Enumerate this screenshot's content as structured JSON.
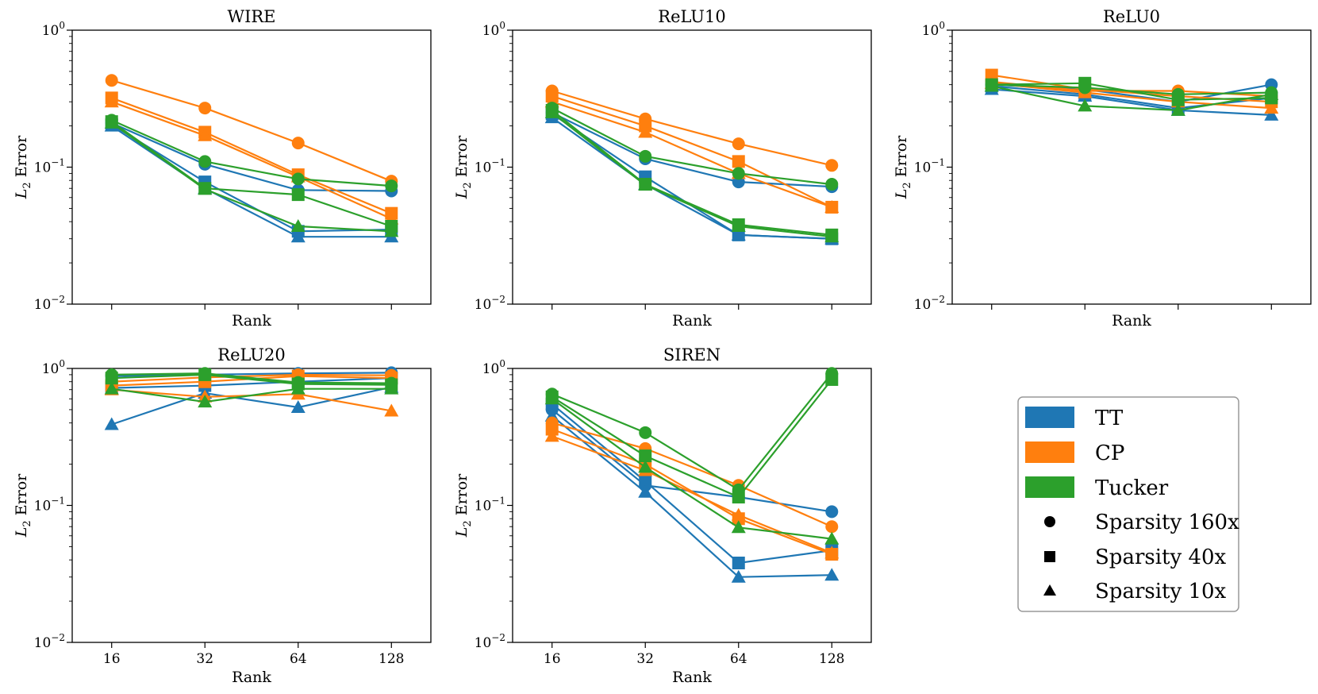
{
  "legend": {
    "entries": [
      {
        "label": "TT",
        "kind": "method",
        "color": "#1f77b4"
      },
      {
        "label": "CP",
        "kind": "method",
        "color": "#ff7f0e"
      },
      {
        "label": "Tucker",
        "kind": "method",
        "color": "#2ca02c"
      },
      {
        "label": "Sparsity 160x",
        "kind": "marker",
        "marker": "circle"
      },
      {
        "label": "Sparsity 40x",
        "kind": "marker",
        "marker": "square"
      },
      {
        "label": "Sparsity 10x",
        "kind": "marker",
        "marker": "triangle"
      }
    ]
  },
  "chart_data": [
    {
      "type": "line",
      "title": "WIRE",
      "xlabel": "Rank",
      "ylabel": "L2 Error",
      "yscale": "log",
      "ylim": [
        0.01,
        1
      ],
      "x": [
        16,
        32,
        64,
        128
      ],
      "x_tick_labels_visible": false,
      "series": [
        {
          "name": "TT - Sparsity 160x",
          "method": "TT",
          "color": "#1f77b4",
          "marker": "circle",
          "values": [
            0.21,
            0.105,
            0.068,
            0.067
          ]
        },
        {
          "name": "TT - Sparsity 40x",
          "method": "TT",
          "color": "#1f77b4",
          "marker": "square",
          "values": [
            0.205,
            0.078,
            0.034,
            0.035
          ]
        },
        {
          "name": "TT - Sparsity 10x",
          "method": "TT",
          "color": "#1f77b4",
          "marker": "triangle",
          "values": [
            0.2,
            0.07,
            0.031,
            0.031
          ]
        },
        {
          "name": "CP - Sparsity 160x",
          "method": "CP",
          "color": "#ff7f0e",
          "marker": "circle",
          "values": [
            0.43,
            0.27,
            0.15,
            0.079
          ]
        },
        {
          "name": "CP - Sparsity 40x",
          "method": "CP",
          "color": "#ff7f0e",
          "marker": "square",
          "values": [
            0.32,
            0.18,
            0.088,
            0.046
          ]
        },
        {
          "name": "CP - Sparsity 10x",
          "method": "CP",
          "color": "#ff7f0e",
          "marker": "triangle",
          "values": [
            0.3,
            0.17,
            0.085,
            0.042
          ]
        },
        {
          "name": "Tucker - Sparsity 160x",
          "method": "Tucker",
          "color": "#2ca02c",
          "marker": "circle",
          "values": [
            0.22,
            0.11,
            0.082,
            0.073
          ]
        },
        {
          "name": "Tucker - Sparsity 40x",
          "method": "Tucker",
          "color": "#2ca02c",
          "marker": "square",
          "values": [
            0.215,
            0.07,
            0.063,
            0.037
          ]
        },
        {
          "name": "Tucker - Sparsity 10x",
          "method": "Tucker",
          "color": "#2ca02c",
          "marker": "triangle",
          "values": [
            0.21,
            0.069,
            0.037,
            0.034
          ]
        }
      ]
    },
    {
      "type": "line",
      "title": "ReLU10",
      "xlabel": "Rank",
      "ylabel": "L2 Error",
      "yscale": "log",
      "ylim": [
        0.01,
        1
      ],
      "x": [
        16,
        32,
        64,
        128
      ],
      "x_tick_labels_visible": false,
      "series": [
        {
          "name": "TT - Sparsity 160x",
          "method": "TT",
          "color": "#1f77b4",
          "marker": "circle",
          "values": [
            0.25,
            0.115,
            0.078,
            0.072
          ]
        },
        {
          "name": "TT - Sparsity 40x",
          "method": "TT",
          "color": "#1f77b4",
          "marker": "square",
          "values": [
            0.245,
            0.085,
            0.032,
            0.03
          ]
        },
        {
          "name": "TT - Sparsity 10x",
          "method": "TT",
          "color": "#1f77b4",
          "marker": "triangle",
          "values": [
            0.23,
            0.075,
            0.032,
            0.03
          ]
        },
        {
          "name": "CP - Sparsity 160x",
          "method": "CP",
          "color": "#ff7f0e",
          "marker": "circle",
          "values": [
            0.36,
            0.225,
            0.148,
            0.103
          ]
        },
        {
          "name": "CP - Sparsity 40x",
          "method": "CP",
          "color": "#ff7f0e",
          "marker": "square",
          "values": [
            0.33,
            0.2,
            0.11,
            0.051
          ]
        },
        {
          "name": "CP - Sparsity 10x",
          "method": "CP",
          "color": "#ff7f0e",
          "marker": "triangle",
          "values": [
            0.3,
            0.18,
            0.09,
            0.051
          ]
        },
        {
          "name": "Tucker - Sparsity 160x",
          "method": "Tucker",
          "color": "#2ca02c",
          "marker": "circle",
          "values": [
            0.27,
            0.12,
            0.09,
            0.075
          ]
        },
        {
          "name": "Tucker - Sparsity 40x",
          "method": "Tucker",
          "color": "#2ca02c",
          "marker": "square",
          "values": [
            0.26,
            0.075,
            0.038,
            0.032
          ]
        },
        {
          "name": "Tucker - Sparsity 10x",
          "method": "Tucker",
          "color": "#2ca02c",
          "marker": "triangle",
          "values": [
            0.25,
            0.074,
            0.037,
            0.031
          ]
        }
      ]
    },
    {
      "type": "line",
      "title": "ReLU0",
      "xlabel": "Rank",
      "ylabel": "L2 Error",
      "yscale": "log",
      "ylim": [
        0.01,
        1
      ],
      "x": [
        16,
        32,
        64,
        128
      ],
      "x_tick_labels_visible": false,
      "series": [
        {
          "name": "TT - Sparsity 160x",
          "method": "TT",
          "color": "#1f77b4",
          "marker": "circle",
          "values": [
            0.4,
            0.37,
            0.3,
            0.4
          ]
        },
        {
          "name": "TT - Sparsity 40x",
          "method": "TT",
          "color": "#1f77b4",
          "marker": "square",
          "values": [
            0.39,
            0.34,
            0.27,
            0.32
          ]
        },
        {
          "name": "TT - Sparsity 10x",
          "method": "TT",
          "color": "#1f77b4",
          "marker": "triangle",
          "values": [
            0.37,
            0.33,
            0.26,
            0.24
          ]
        },
        {
          "name": "CP - Sparsity 160x",
          "method": "CP",
          "color": "#ff7f0e",
          "marker": "circle",
          "values": [
            0.42,
            0.36,
            0.36,
            0.33
          ]
        },
        {
          "name": "CP - Sparsity 40x",
          "method": "CP",
          "color": "#ff7f0e",
          "marker": "square",
          "values": [
            0.47,
            0.37,
            0.33,
            0.3
          ]
        },
        {
          "name": "CP - Sparsity 10x",
          "method": "CP",
          "color": "#ff7f0e",
          "marker": "triangle",
          "values": [
            0.41,
            0.35,
            0.3,
            0.27
          ]
        },
        {
          "name": "Tucker - Sparsity 160x",
          "method": "Tucker",
          "color": "#2ca02c",
          "marker": "circle",
          "values": [
            0.4,
            0.38,
            0.34,
            0.35
          ]
        },
        {
          "name": "Tucker - Sparsity 40x",
          "method": "Tucker",
          "color": "#2ca02c",
          "marker": "square",
          "values": [
            0.4,
            0.41,
            0.31,
            0.32
          ]
        },
        {
          "name": "Tucker - Sparsity 10x",
          "method": "Tucker",
          "color": "#2ca02c",
          "marker": "triangle",
          "values": [
            0.39,
            0.28,
            0.26,
            0.34
          ]
        }
      ]
    },
    {
      "type": "line",
      "title": "ReLU20",
      "xlabel": "Rank",
      "ylabel": "L2 Error",
      "yscale": "log",
      "ylim": [
        0.01,
        1
      ],
      "x": [
        16,
        32,
        64,
        128
      ],
      "x_tick_labels_visible": true,
      "series": [
        {
          "name": "TT - Sparsity 160x",
          "method": "TT",
          "color": "#1f77b4",
          "marker": "circle",
          "values": [
            0.88,
            0.9,
            0.92,
            0.93
          ]
        },
        {
          "name": "TT - Sparsity 40x",
          "method": "TT",
          "color": "#1f77b4",
          "marker": "square",
          "values": [
            0.72,
            0.75,
            0.8,
            0.85
          ]
        },
        {
          "name": "TT - Sparsity 10x",
          "method": "TT",
          "color": "#1f77b4",
          "marker": "triangle",
          "values": [
            0.39,
            0.66,
            0.52,
            0.73
          ]
        },
        {
          "name": "CP - Sparsity 160x",
          "method": "CP",
          "color": "#ff7f0e",
          "marker": "circle",
          "values": [
            0.8,
            0.86,
            0.9,
            0.89
          ]
        },
        {
          "name": "CP - Sparsity 40x",
          "method": "CP",
          "color": "#ff7f0e",
          "marker": "square",
          "values": [
            0.75,
            0.8,
            0.88,
            0.85
          ]
        },
        {
          "name": "CP - Sparsity 10x",
          "method": "CP",
          "color": "#ff7f0e",
          "marker": "triangle",
          "values": [
            0.7,
            0.62,
            0.65,
            0.49
          ]
        },
        {
          "name": "Tucker - Sparsity 160x",
          "method": "Tucker",
          "color": "#2ca02c",
          "marker": "circle",
          "values": [
            0.9,
            0.92,
            0.79,
            0.78
          ]
        },
        {
          "name": "Tucker - Sparsity 40x",
          "method": "Tucker",
          "color": "#2ca02c",
          "marker": "square",
          "values": [
            0.85,
            0.9,
            0.77,
            0.76
          ]
        },
        {
          "name": "Tucker - Sparsity 10x",
          "method": "Tucker",
          "color": "#2ca02c",
          "marker": "triangle",
          "values": [
            0.71,
            0.57,
            0.71,
            0.71
          ]
        }
      ]
    },
    {
      "type": "line",
      "title": "SIREN",
      "xlabel": "Rank",
      "ylabel": "L2 Error",
      "yscale": "log",
      "ylim": [
        0.01,
        1
      ],
      "x": [
        16,
        32,
        64,
        128
      ],
      "x_tick_labels_visible": true,
      "series": [
        {
          "name": "TT - Sparsity 160x",
          "method": "TT",
          "color": "#1f77b4",
          "marker": "circle",
          "values": [
            0.5,
            0.14,
            0.115,
            0.09
          ]
        },
        {
          "name": "TT - Sparsity 40x",
          "method": "TT",
          "color": "#1f77b4",
          "marker": "square",
          "values": [
            0.55,
            0.15,
            0.038,
            0.047
          ]
        },
        {
          "name": "TT - Sparsity 10x",
          "method": "TT",
          "color": "#1f77b4",
          "marker": "triangle",
          "values": [
            0.45,
            0.125,
            0.03,
            0.031
          ]
        },
        {
          "name": "CP - Sparsity 160x",
          "method": "CP",
          "color": "#ff7f0e",
          "marker": "circle",
          "values": [
            0.4,
            0.26,
            0.14,
            0.07
          ]
        },
        {
          "name": "CP - Sparsity 40x",
          "method": "CP",
          "color": "#ff7f0e",
          "marker": "square",
          "values": [
            0.36,
            0.2,
            0.08,
            0.044
          ]
        },
        {
          "name": "CP - Sparsity 10x",
          "method": "CP",
          "color": "#ff7f0e",
          "marker": "triangle",
          "values": [
            0.32,
            0.18,
            0.085,
            0.045
          ]
        },
        {
          "name": "Tucker - Sparsity 160x",
          "method": "Tucker",
          "color": "#2ca02c",
          "marker": "circle",
          "values": [
            0.65,
            0.34,
            0.13,
            0.92
          ]
        },
        {
          "name": "Tucker - Sparsity 40x",
          "method": "Tucker",
          "color": "#2ca02c",
          "marker": "square",
          "values": [
            0.62,
            0.23,
            0.115,
            0.83
          ]
        },
        {
          "name": "Tucker - Sparsity 10x",
          "method": "Tucker",
          "color": "#2ca02c",
          "marker": "triangle",
          "values": [
            0.6,
            0.19,
            0.069,
            0.057
          ]
        }
      ]
    }
  ]
}
